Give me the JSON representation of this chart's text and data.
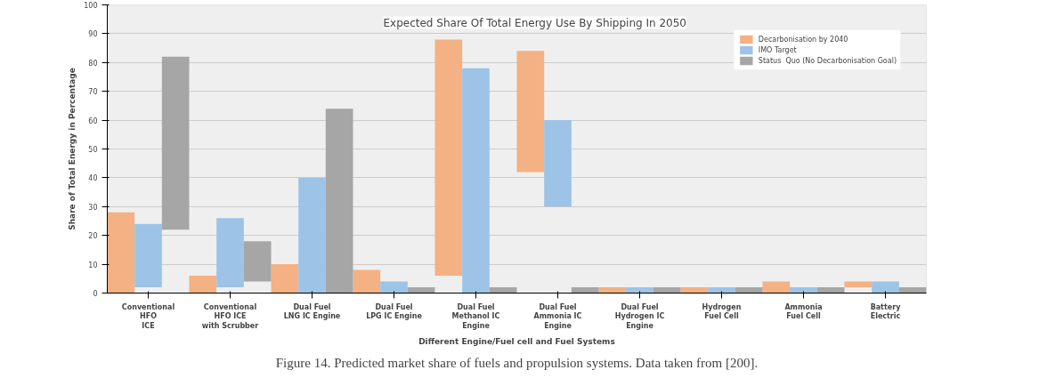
{
  "chart_data": {
    "type": "bar",
    "title": "Expected Share Of Total Energy Use By Shipping In 2050",
    "xlabel": "Different Engine/Fuel cell and Fuel Systems",
    "ylabel": "Share of Total Energy in Percentage",
    "categories": [
      "Conventional\nHFO\nICE",
      "Conventional\nHFO ICE\nwith Scrubber",
      "Dual Fuel\nLNG IC Engine",
      "Dual Fuel\nLPG IC Engine",
      "Dual Fuel\nMethanol IC\nEngine",
      "Dual Fuel\nAmmonia IC\nEngine",
      "Dual Fuel\nHydrogen IC\nEngine",
      "Hydrogen\nFuel Cell",
      "Ammonia\nFuel Cell",
      "Battery\nElectric"
    ],
    "series": [
      {
        "name": "Decarbonisation by 2040",
        "color": "#f4b183",
        "values": [
          28,
          6,
          10,
          8,
          82,
          42,
          2,
          2,
          4,
          2
        ],
        "base": [
          0,
          0,
          0,
          0,
          6,
          42,
          0,
          0,
          0,
          2
        ]
      },
      {
        "name": "IMO Target",
        "color": "#9dc3e6",
        "values": [
          22,
          24,
          40,
          4,
          78,
          30,
          2,
          2,
          2,
          4
        ],
        "base": [
          2,
          2,
          0,
          0,
          0,
          30,
          0,
          0,
          0,
          0
        ]
      },
      {
        "name": "Status  Quo (No Decarbonisation Goal)",
        "color": "#a6a6a6",
        "values": [
          60,
          14,
          64,
          2,
          2,
          2,
          2,
          2,
          2,
          2
        ],
        "base": [
          22,
          4,
          0,
          0,
          0,
          0,
          0,
          0,
          0,
          0
        ]
      }
    ],
    "ylim": [
      0,
      100
    ],
    "yticks": [
      0,
      10,
      20,
      30,
      40,
      50,
      60,
      70,
      80,
      90,
      100
    ],
    "grid": "y",
    "legend": "top right",
    "annotations": [
      "Figure 14. Predicted market share of fuels and propulsion systems. Data taken from [200]."
    ]
  }
}
